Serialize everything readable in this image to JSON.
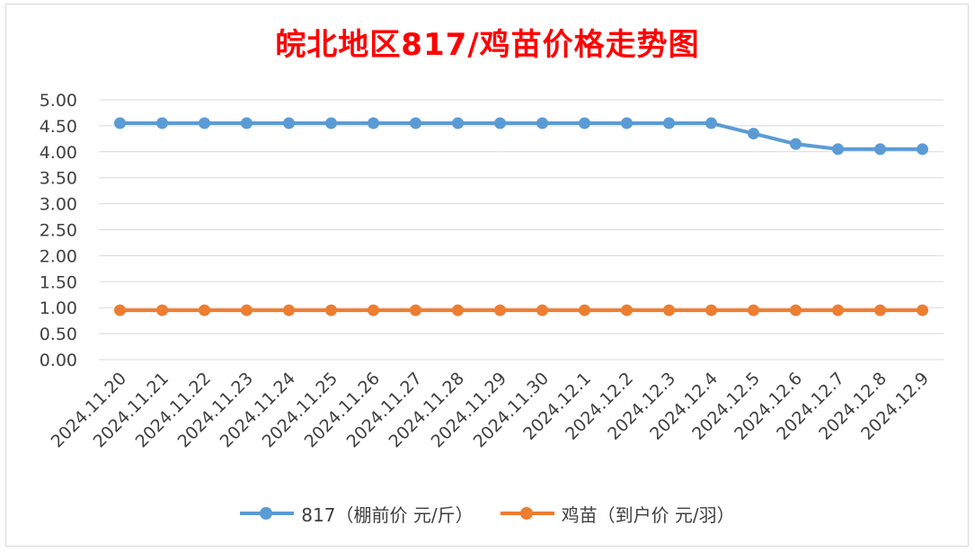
{
  "chart_data": {
    "type": "line",
    "title": "皖北地区817/鸡苗价格走势图",
    "categories": [
      "2024.11.20",
      "2024.11.21",
      "2024.11.22",
      "2024.11.23",
      "2024.11.24",
      "2024.11.25",
      "2024.11.26",
      "2024.11.27",
      "2024.11.28",
      "2024.11.29",
      "2024.11.30",
      "2024.12.1",
      "2024.12.2",
      "2024.12.3",
      "2024.12.4",
      "2024.12.5",
      "2024.12.6",
      "2024.12.7",
      "2024.12.8",
      "2024.12.9"
    ],
    "series": [
      {
        "name": "817（棚前价 元/斤）",
        "color": "#5b9bd5",
        "values": [
          4.55,
          4.55,
          4.55,
          4.55,
          4.55,
          4.55,
          4.55,
          4.55,
          4.55,
          4.55,
          4.55,
          4.55,
          4.55,
          4.55,
          4.55,
          4.35,
          4.15,
          4.05,
          4.05,
          4.05
        ]
      },
      {
        "name": "鸡苗（到户价 元/羽）",
        "color": "#ed7d31",
        "values": [
          0.95,
          0.95,
          0.95,
          0.95,
          0.95,
          0.95,
          0.95,
          0.95,
          0.95,
          0.95,
          0.95,
          0.95,
          0.95,
          0.95,
          0.95,
          0.95,
          0.95,
          0.95,
          0.95,
          0.95
        ]
      }
    ],
    "ylim": [
      0,
      5
    ],
    "yticks": [
      "0.00",
      "0.50",
      "1.00",
      "1.50",
      "2.00",
      "2.50",
      "3.00",
      "3.50",
      "4.00",
      "4.50",
      "5.00"
    ],
    "grid": true,
    "legend": "bottom"
  }
}
